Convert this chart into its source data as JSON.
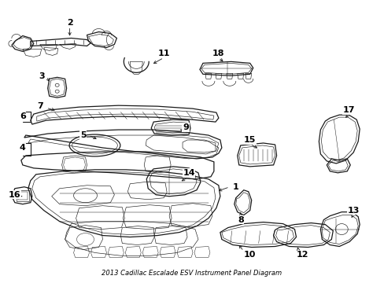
{
  "title": "2013 Cadillac Escalade ESV Instrument Panel Diagram",
  "background_color": "#ffffff",
  "line_color": "#1a1a1a",
  "text_color": "#000000",
  "fig_width": 4.89,
  "fig_height": 3.6,
  "dpi": 100,
  "label_fontsize": 8.0,
  "lw_main": 0.9,
  "lw_thin": 0.45,
  "lw_detail": 0.35
}
